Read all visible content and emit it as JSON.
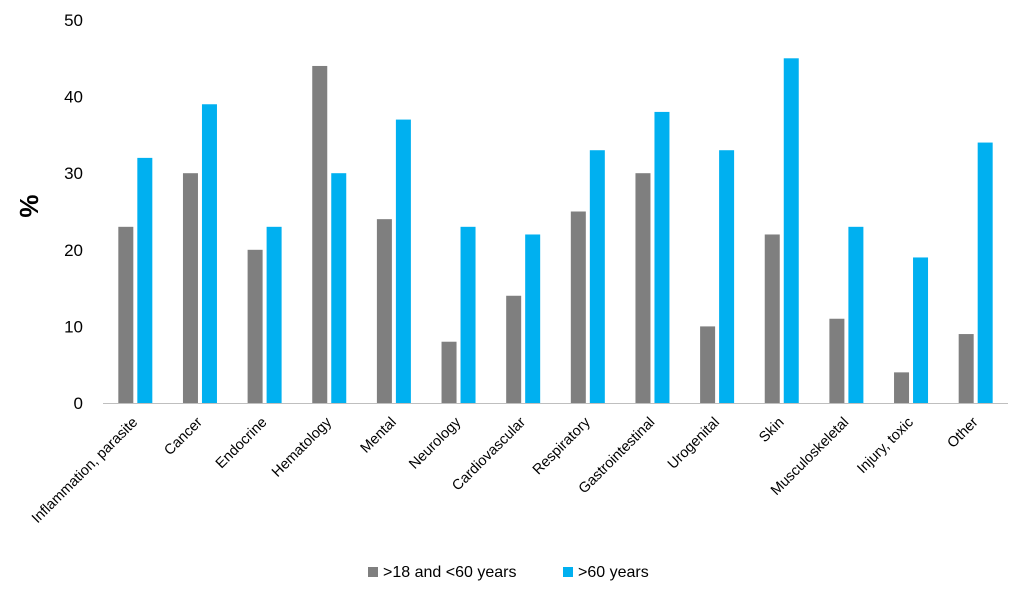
{
  "chart_data": {
    "type": "bar",
    "title": "",
    "xlabel": "",
    "ylabel": "%",
    "ylim": [
      0,
      50
    ],
    "yticks": [
      0,
      10,
      20,
      30,
      40,
      50
    ],
    "grid": false,
    "legend_position": "bottom",
    "categories": [
      "Inflammation, parasite",
      "Cancer",
      "Endocrine",
      "Hematology",
      "Mental",
      "Neurology",
      "Cardiovascular",
      "Respiratory",
      "Gastrointestinal",
      "Urogenital",
      "Skin",
      "Musculoskeletal",
      "Injury, toxic",
      "Other"
    ],
    "series": [
      {
        "name": ">18 and <60 years",
        "color": "#7f7f7f",
        "values": [
          23,
          30,
          20,
          44,
          24,
          8,
          14,
          25,
          30,
          10,
          22,
          11,
          4,
          9
        ]
      },
      {
        "name": ">60 years",
        "color": "#00b0f0",
        "values": [
          32,
          39,
          23,
          30,
          37,
          23,
          22,
          33,
          38,
          33,
          45,
          23,
          19,
          34
        ]
      }
    ]
  }
}
